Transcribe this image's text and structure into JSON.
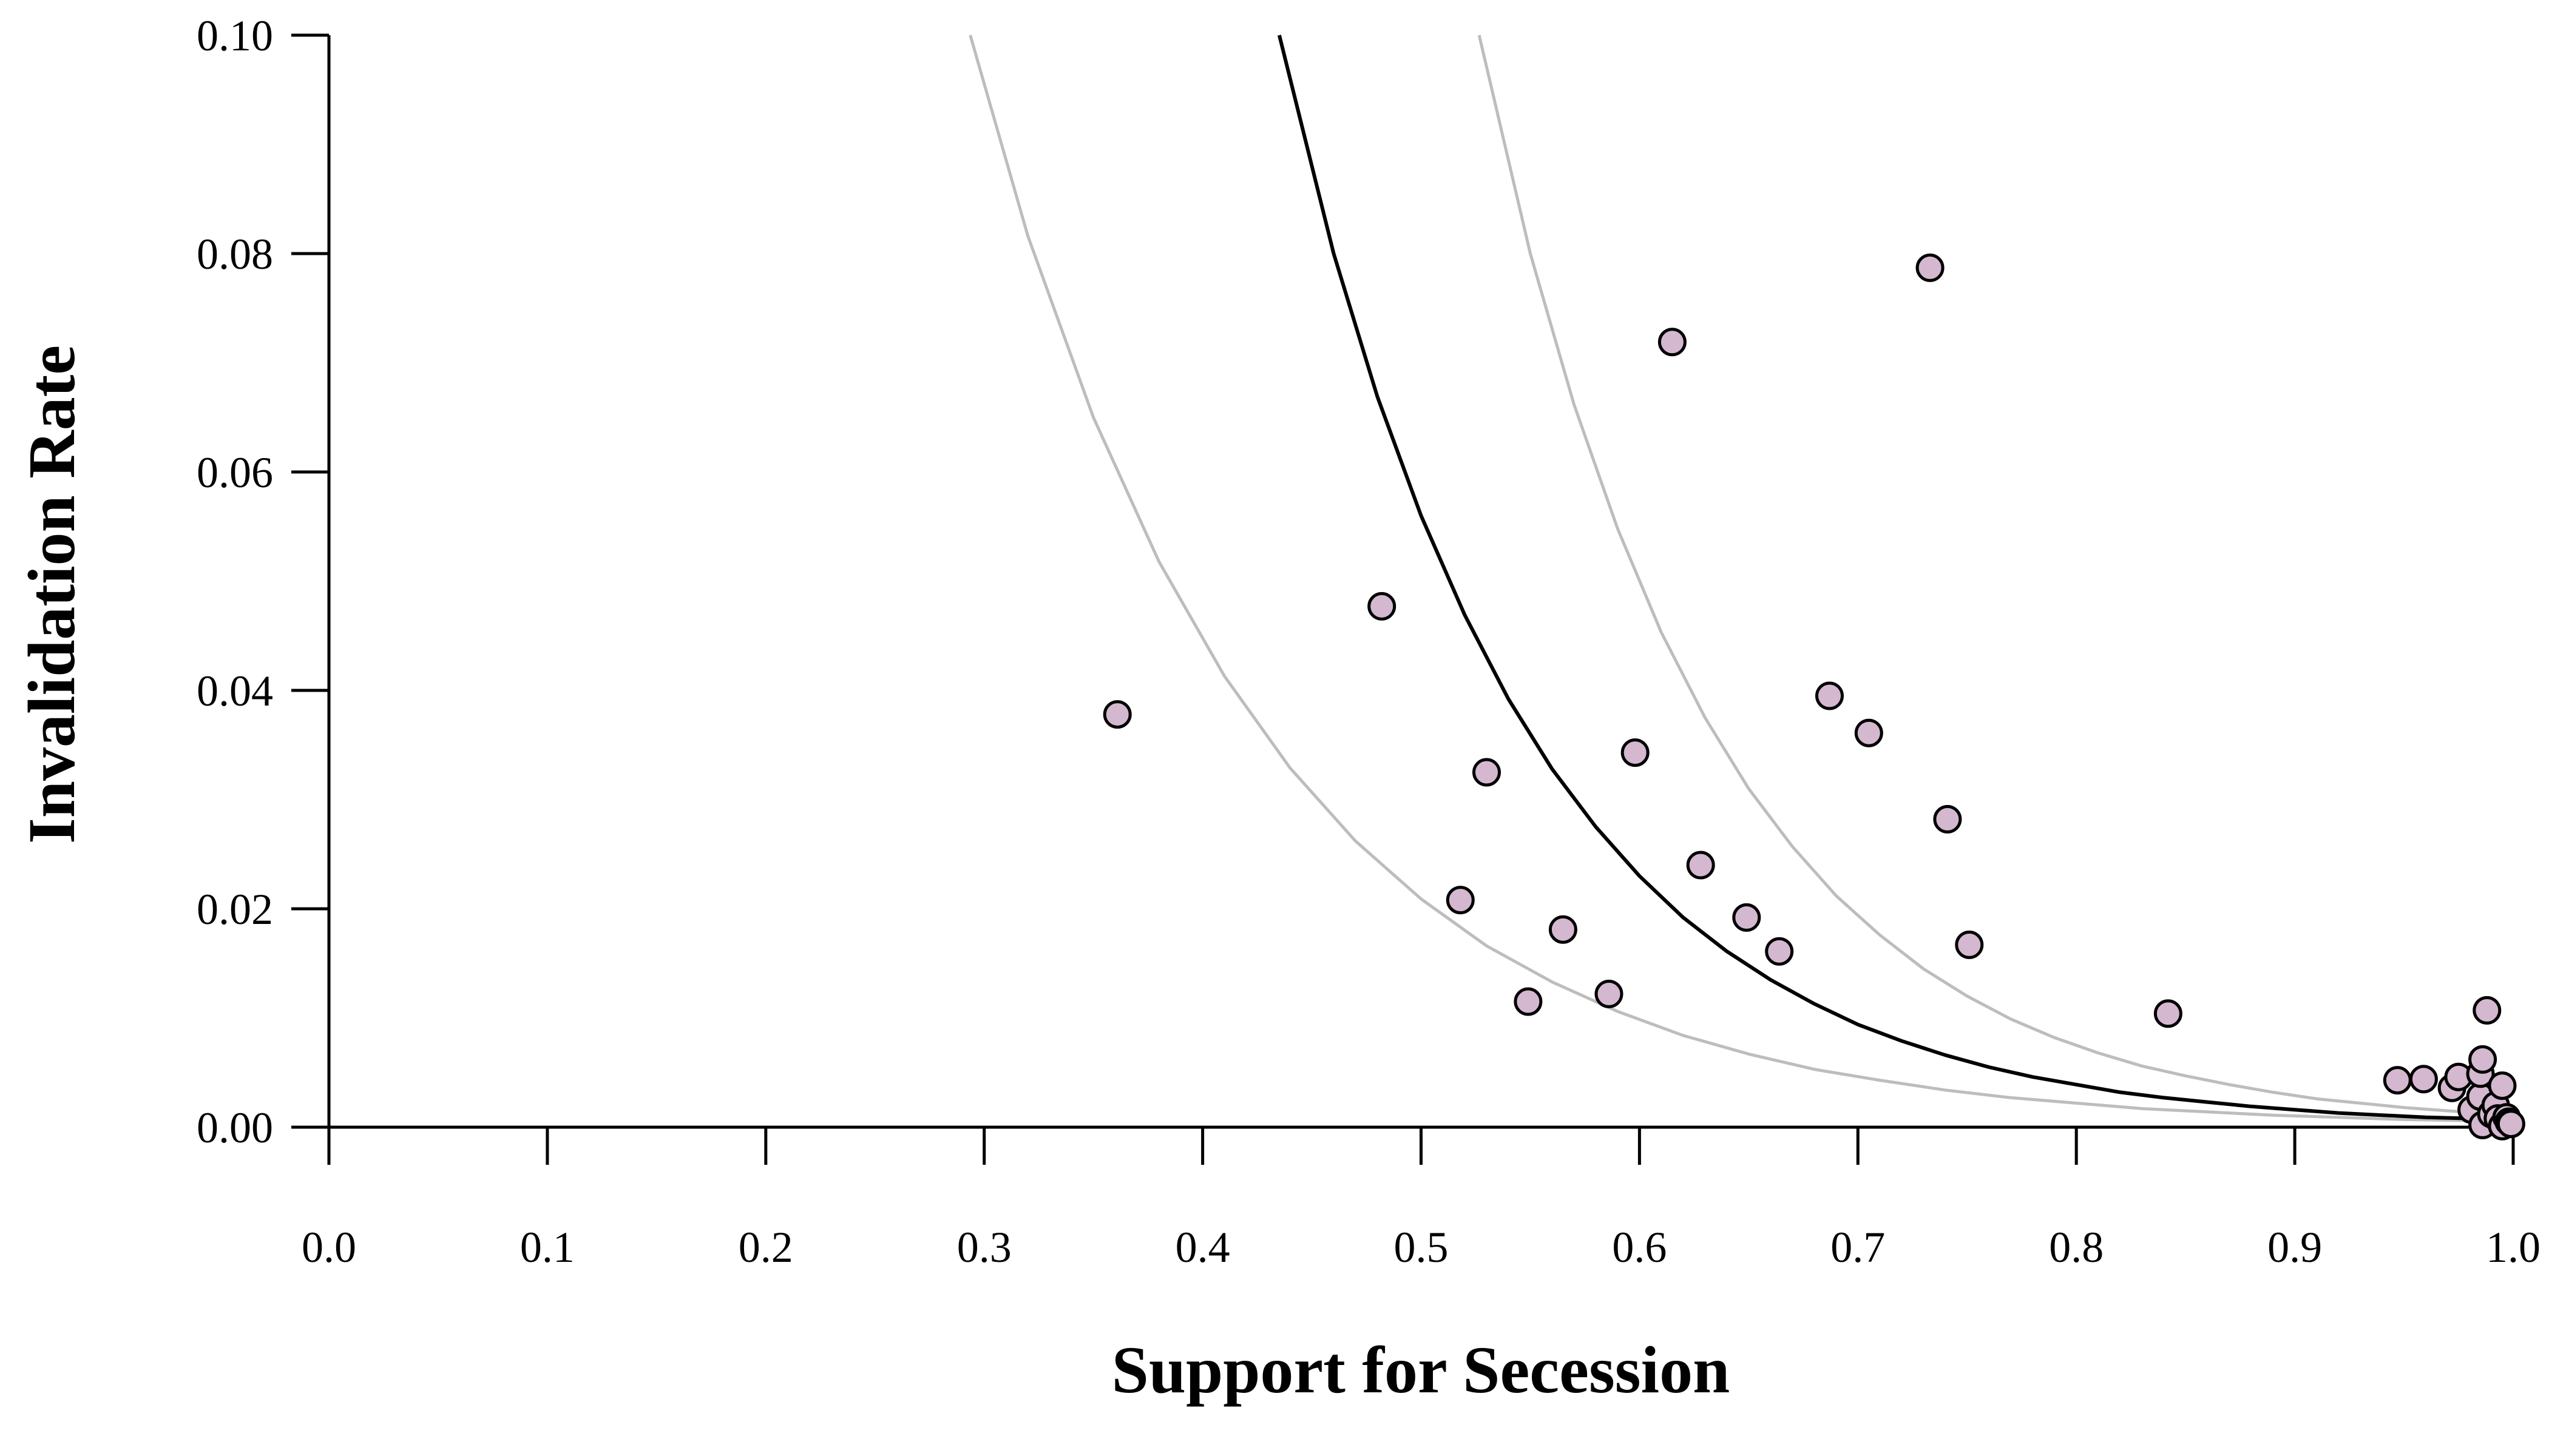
{
  "chart_data": {
    "type": "scatter",
    "xlabel": "Support for Secession",
    "ylabel": "Invalidation Rate",
    "xlim": [
      0.0,
      1.0
    ],
    "ylim": [
      0.0,
      0.1
    ],
    "x_ticks": [
      "0.0",
      "0.1",
      "0.2",
      "0.3",
      "0.4",
      "0.5",
      "0.6",
      "0.7",
      "0.8",
      "0.9",
      "1.0"
    ],
    "y_ticks": [
      "0.00",
      "0.02",
      "0.04",
      "0.06",
      "0.08",
      "0.10"
    ],
    "grid": false,
    "colors": {
      "points_fill": "#d4b8cf",
      "points_stroke": "#000000",
      "fit_line": "#000000",
      "interval_lines": "#bdbdbd"
    },
    "points": [
      [
        0.361,
        0.0378
      ],
      [
        0.482,
        0.0477
      ],
      [
        0.518,
        0.0208
      ],
      [
        0.53,
        0.0325
      ],
      [
        0.549,
        0.0115
      ],
      [
        0.565,
        0.0181
      ],
      [
        0.586,
        0.0122
      ],
      [
        0.598,
        0.0343
      ],
      [
        0.615,
        0.0719
      ],
      [
        0.628,
        0.024
      ],
      [
        0.649,
        0.0192
      ],
      [
        0.664,
        0.0161
      ],
      [
        0.687,
        0.0395
      ],
      [
        0.705,
        0.0361
      ],
      [
        0.733,
        0.0787
      ],
      [
        0.741,
        0.0282
      ],
      [
        0.751,
        0.0167
      ],
      [
        0.842,
        0.0104
      ],
      [
        0.947,
        0.0043
      ],
      [
        0.959,
        0.0044
      ],
      [
        0.972,
        0.0036
      ],
      [
        0.975,
        0.0046
      ],
      [
        0.981,
        0.0016
      ],
      [
        0.985,
        0.0028
      ],
      [
        0.985,
        0.0049
      ],
      [
        0.986,
        0.0062
      ],
      [
        0.986,
        0.0002
      ],
      [
        0.988,
        0.0107
      ],
      [
        0.99,
        0.0012
      ],
      [
        0.992,
        0.002
      ],
      [
        0.993,
        0.0008
      ],
      [
        0.995,
        0.0038
      ],
      [
        0.995,
        0.0001
      ],
      [
        0.997,
        0.0009
      ],
      [
        0.998,
        0.0005
      ],
      [
        0.999,
        0.0003
      ]
    ],
    "curves": [
      {
        "x": [
          0.2936,
          0.32,
          0.35,
          0.38,
          0.41,
          0.44,
          0.47,
          0.5,
          0.53,
          0.56,
          0.59,
          0.62,
          0.65,
          0.68,
          0.71,
          0.74,
          0.77,
          0.8,
          0.83,
          0.86,
          0.89,
          0.92,
          0.95,
          0.98,
          1.0
        ],
        "y": [
          0.1,
          0.0816,
          0.065,
          0.0518,
          0.0413,
          0.0329,
          0.0262,
          0.0209,
          0.0166,
          0.0133,
          0.0106,
          0.0084,
          0.0067,
          0.0053,
          0.0043,
          0.0034,
          0.0027,
          0.0022,
          0.0017,
          0.0014,
          0.0011,
          0.0009,
          0.0007,
          0.0006,
          0.0005
        ]
      },
      {
        "x": [
          0.4351,
          0.46,
          0.48,
          0.5,
          0.52,
          0.54,
          0.56,
          0.58,
          0.6,
          0.62,
          0.64,
          0.66,
          0.68,
          0.7,
          0.72,
          0.74,
          0.76,
          0.78,
          0.8,
          0.82,
          0.84,
          0.86,
          0.88,
          0.9,
          0.92,
          0.94,
          0.96,
          0.98,
          1.0
        ],
        "y": [
          0.1,
          0.08,
          0.0669,
          0.056,
          0.0469,
          0.0392,
          0.0328,
          0.0275,
          0.023,
          0.0192,
          0.0161,
          0.0135,
          0.0113,
          0.0094,
          0.0079,
          0.0066,
          0.0055,
          0.0046,
          0.0039,
          0.0032,
          0.0027,
          0.0023,
          0.0019,
          0.0016,
          0.0013,
          0.0011,
          0.0009,
          0.0008,
          0.0007
        ]
      },
      {
        "x": [
          0.5266,
          0.55,
          0.57,
          0.59,
          0.61,
          0.63,
          0.65,
          0.67,
          0.69,
          0.71,
          0.73,
          0.75,
          0.77,
          0.79,
          0.81,
          0.83,
          0.85,
          0.87,
          0.89,
          0.91,
          0.93,
          0.95,
          0.97,
          1.0
        ],
        "y": [
          0.1,
          0.08,
          0.0662,
          0.0548,
          0.0453,
          0.0375,
          0.031,
          0.0257,
          0.0212,
          0.0176,
          0.0145,
          0.012,
          0.0099,
          0.0082,
          0.0068,
          0.0056,
          0.0047,
          0.0039,
          0.0032,
          0.0026,
          0.0022,
          0.0018,
          0.0015,
          0.0011
        ]
      }
    ]
  }
}
